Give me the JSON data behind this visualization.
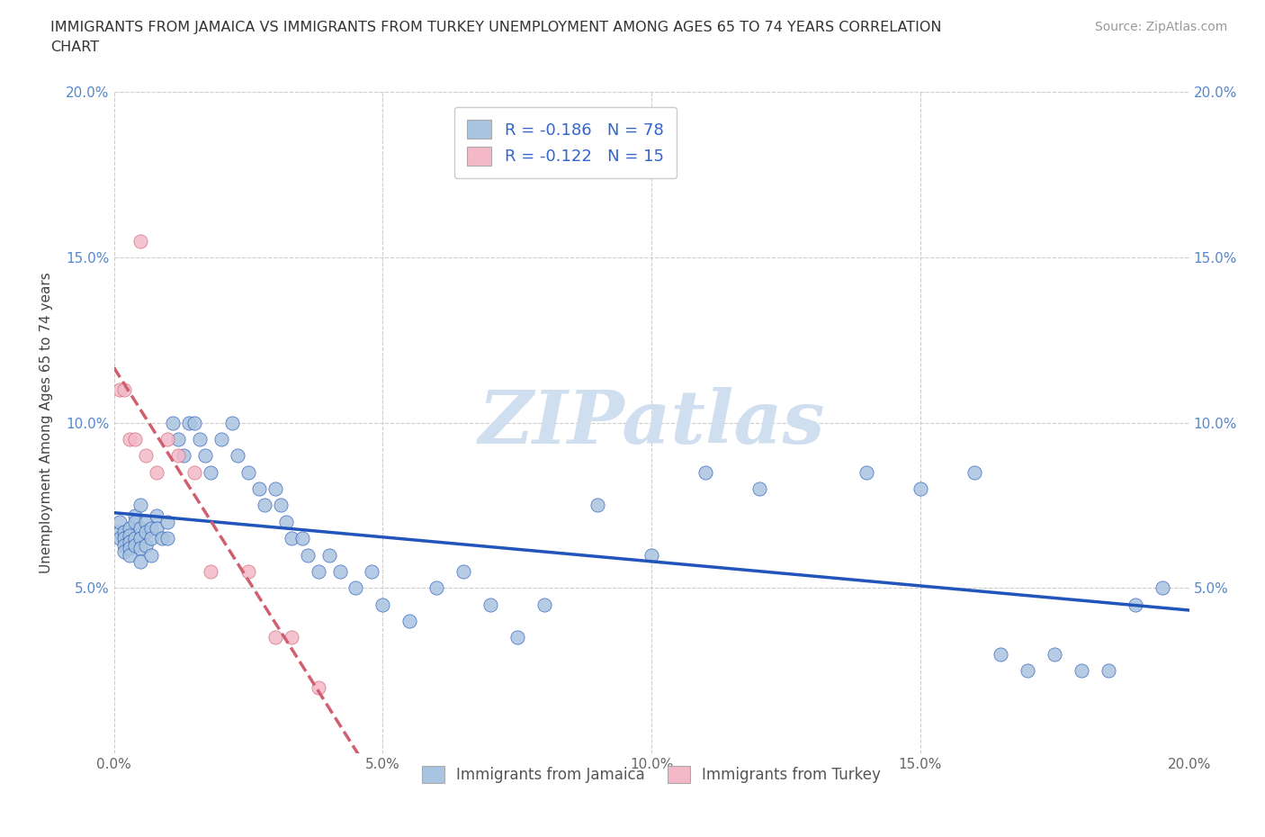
{
  "title": "IMMIGRANTS FROM JAMAICA VS IMMIGRANTS FROM TURKEY UNEMPLOYMENT AMONG AGES 65 TO 74 YEARS CORRELATION\nCHART",
  "source": "Source: ZipAtlas.com",
  "ylabel": "Unemployment Among Ages 65 to 74 years",
  "xlim": [
    0.0,
    0.2
  ],
  "ylim": [
    0.0,
    0.2
  ],
  "xticks": [
    0.0,
    0.05,
    0.1,
    0.15,
    0.2
  ],
  "yticks": [
    0.0,
    0.05,
    0.1,
    0.15,
    0.2
  ],
  "xtick_labels": [
    "0.0%",
    "5.0%",
    "10.0%",
    "15.0%",
    "20.0%"
  ],
  "ytick_labels_left": [
    "",
    "5.0%",
    "10.0%",
    "15.0%",
    "20.0%"
  ],
  "ytick_labels_right": [
    "",
    "5.0%",
    "10.0%",
    "15.0%",
    "20.0%"
  ],
  "r_jamaica": -0.186,
  "n_jamaica": 78,
  "r_turkey": -0.122,
  "n_turkey": 15,
  "color_jamaica": "#a8c4e0",
  "color_turkey": "#f4b8c8",
  "line_color_jamaica": "#2255bb",
  "line_color_turkey": "#d06070",
  "watermark": "ZIPatlas",
  "watermark_color": "#d0dff0",
  "legend_label_jamaica": "Immigrants from Jamaica",
  "legend_label_turkey": "Immigrants from Turkey",
  "jamaica_x": [
    0.001,
    0.001,
    0.001,
    0.002,
    0.002,
    0.002,
    0.002,
    0.003,
    0.003,
    0.003,
    0.003,
    0.003,
    0.004,
    0.004,
    0.004,
    0.004,
    0.005,
    0.005,
    0.005,
    0.005,
    0.005,
    0.006,
    0.006,
    0.006,
    0.007,
    0.007,
    0.007,
    0.008,
    0.008,
    0.009,
    0.01,
    0.01,
    0.011,
    0.012,
    0.013,
    0.014,
    0.015,
    0.016,
    0.017,
    0.018,
    0.02,
    0.022,
    0.023,
    0.025,
    0.027,
    0.028,
    0.03,
    0.031,
    0.032,
    0.033,
    0.035,
    0.036,
    0.038,
    0.04,
    0.042,
    0.045,
    0.048,
    0.05,
    0.055,
    0.06,
    0.065,
    0.07,
    0.075,
    0.08,
    0.09,
    0.1,
    0.11,
    0.12,
    0.14,
    0.15,
    0.16,
    0.165,
    0.17,
    0.175,
    0.18,
    0.185,
    0.19,
    0.195
  ],
  "jamaica_y": [
    0.067,
    0.065,
    0.07,
    0.067,
    0.065,
    0.063,
    0.061,
    0.068,
    0.066,
    0.064,
    0.062,
    0.06,
    0.072,
    0.07,
    0.065,
    0.063,
    0.075,
    0.068,
    0.065,
    0.062,
    0.058,
    0.07,
    0.067,
    0.063,
    0.068,
    0.065,
    0.06,
    0.072,
    0.068,
    0.065,
    0.07,
    0.065,
    0.1,
    0.095,
    0.09,
    0.1,
    0.1,
    0.095,
    0.09,
    0.085,
    0.095,
    0.1,
    0.09,
    0.085,
    0.08,
    0.075,
    0.08,
    0.075,
    0.07,
    0.065,
    0.065,
    0.06,
    0.055,
    0.06,
    0.055,
    0.05,
    0.055,
    0.045,
    0.04,
    0.05,
    0.055,
    0.045,
    0.035,
    0.045,
    0.075,
    0.06,
    0.085,
    0.08,
    0.085,
    0.08,
    0.085,
    0.03,
    0.025,
    0.03,
    0.025,
    0.025,
    0.045,
    0.05
  ],
  "turkey_x": [
    0.001,
    0.002,
    0.003,
    0.004,
    0.005,
    0.006,
    0.008,
    0.01,
    0.012,
    0.015,
    0.018,
    0.025,
    0.03,
    0.033,
    0.038
  ],
  "turkey_y": [
    0.11,
    0.11,
    0.095,
    0.095,
    0.155,
    0.09,
    0.085,
    0.095,
    0.09,
    0.085,
    0.055,
    0.055,
    0.035,
    0.035,
    0.02
  ]
}
